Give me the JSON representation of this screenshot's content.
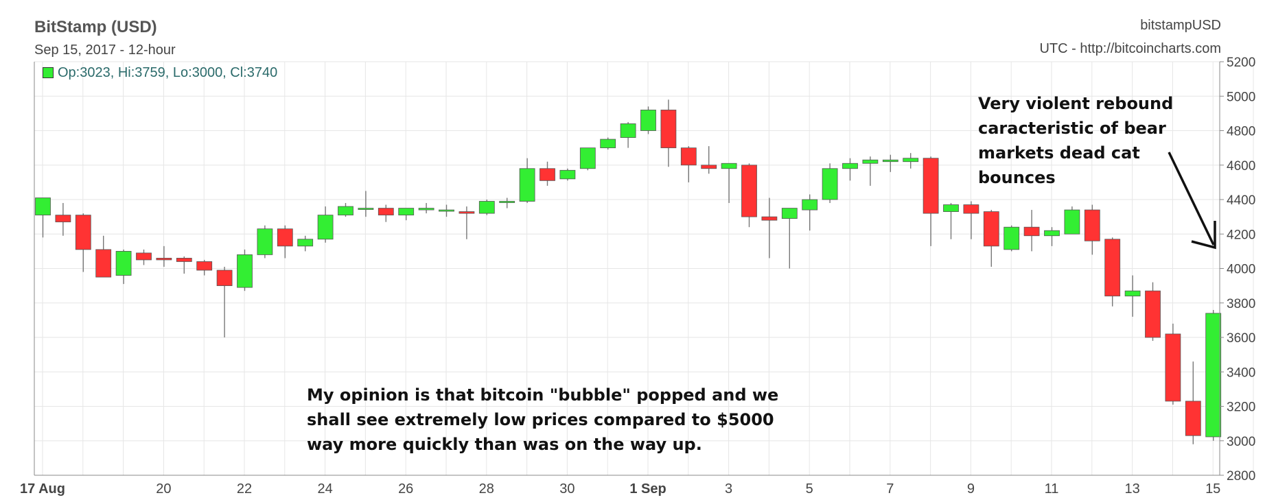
{
  "header": {
    "title": "BitStamp (USD)",
    "subtitle": "Sep 15, 2017 - 12-hour",
    "ohlc": "Op:3023, Hi:3759, Lo:3000, Cl:3740",
    "symbol": "bitstampUSD",
    "source": "UTC - http://bitcoincharts.com"
  },
  "annotations": {
    "right_note": "Very violent rebound caracteristic of bear markets dead cat bounces",
    "bottom_note": "My opinion is that bitcoin \"bubble\" popped and we shall see extremely low prices compared to $5000 way more quickly than was on the way up."
  },
  "colors": {
    "up": "#33ee33",
    "down": "#ff3333",
    "grid": "#e6e6e6",
    "axis": "#888888",
    "text": "#444444"
  },
  "chart_data": {
    "type": "candlestick",
    "title": "BitStamp (USD)",
    "ylim": [
      2800,
      5200
    ],
    "yticks": [
      2800,
      3000,
      3200,
      3400,
      3600,
      3800,
      4000,
      4200,
      4400,
      4600,
      4800,
      5000,
      5200
    ],
    "y_axis_side": "right",
    "grid": true,
    "xlim": [
      0,
      61
    ],
    "x_ticks": [
      {
        "label": "17 Aug",
        "index": 0,
        "bold": true
      },
      {
        "label": "20",
        "index": 6
      },
      {
        "label": "22",
        "index": 10
      },
      {
        "label": "24",
        "index": 14
      },
      {
        "label": "26",
        "index": 18
      },
      {
        "label": "28",
        "index": 22
      },
      {
        "label": "30",
        "index": 26
      },
      {
        "label": "1 Sep",
        "index": 30,
        "bold": true
      },
      {
        "label": "3",
        "index": 34
      },
      {
        "label": "5",
        "index": 38
      },
      {
        "label": "7",
        "index": 42
      },
      {
        "label": "9",
        "index": 46
      },
      {
        "label": "11",
        "index": 50
      },
      {
        "label": "13",
        "index": 54
      },
      {
        "label": "15",
        "index": 58
      }
    ],
    "candles": [
      {
        "o": 4310,
        "h": 4410,
        "l": 4180,
        "c": 4410
      },
      {
        "o": 4310,
        "h": 4380,
        "l": 4190,
        "c": 4270
      },
      {
        "o": 4310,
        "h": 4320,
        "l": 3980,
        "c": 4110
      },
      {
        "o": 4110,
        "h": 4190,
        "l": 3960,
        "c": 3950
      },
      {
        "o": 3960,
        "h": 4110,
        "l": 3910,
        "c": 4100
      },
      {
        "o": 4090,
        "h": 4110,
        "l": 4020,
        "c": 4050
      },
      {
        "o": 4060,
        "h": 4130,
        "l": 4010,
        "c": 4050
      },
      {
        "o": 4060,
        "h": 4070,
        "l": 3970,
        "c": 4040
      },
      {
        "o": 4040,
        "h": 4050,
        "l": 3960,
        "c": 3990
      },
      {
        "o": 3990,
        "h": 4010,
        "l": 3600,
        "c": 3900
      },
      {
        "o": 3890,
        "h": 4110,
        "l": 3870,
        "c": 4080
      },
      {
        "o": 4080,
        "h": 4250,
        "l": 4060,
        "c": 4230
      },
      {
        "o": 4230,
        "h": 4250,
        "l": 4060,
        "c": 4130
      },
      {
        "o": 4130,
        "h": 4190,
        "l": 4100,
        "c": 4170
      },
      {
        "o": 4170,
        "h": 4360,
        "l": 4150,
        "c": 4310
      },
      {
        "o": 4310,
        "h": 4380,
        "l": 4300,
        "c": 4360
      },
      {
        "o": 4350,
        "h": 4450,
        "l": 4300,
        "c": 4350
      },
      {
        "o": 4350,
        "h": 4370,
        "l": 4270,
        "c": 4310
      },
      {
        "o": 4310,
        "h": 4350,
        "l": 4280,
        "c": 4350
      },
      {
        "o": 4340,
        "h": 4380,
        "l": 4320,
        "c": 4350
      },
      {
        "o": 4340,
        "h": 4370,
        "l": 4300,
        "c": 4340
      },
      {
        "o": 4330,
        "h": 4360,
        "l": 4170,
        "c": 4320
      },
      {
        "o": 4320,
        "h": 4400,
        "l": 4310,
        "c": 4390
      },
      {
        "o": 4390,
        "h": 4410,
        "l": 4350,
        "c": 4390
      },
      {
        "o": 4390,
        "h": 4640,
        "l": 4380,
        "c": 4580
      },
      {
        "o": 4580,
        "h": 4620,
        "l": 4480,
        "c": 4510
      },
      {
        "o": 4520,
        "h": 4580,
        "l": 4510,
        "c": 4570
      },
      {
        "o": 4580,
        "h": 4700,
        "l": 4570,
        "c": 4700
      },
      {
        "o": 4700,
        "h": 4760,
        "l": 4690,
        "c": 4750
      },
      {
        "o": 4760,
        "h": 4850,
        "l": 4700,
        "c": 4840
      },
      {
        "o": 4800,
        "h": 4940,
        "l": 4780,
        "c": 4920
      },
      {
        "o": 4920,
        "h": 4980,
        "l": 4590,
        "c": 4700
      },
      {
        "o": 4700,
        "h": 4710,
        "l": 4500,
        "c": 4600
      },
      {
        "o": 4600,
        "h": 4710,
        "l": 4550,
        "c": 4580
      },
      {
        "o": 4580,
        "h": 4610,
        "l": 4380,
        "c": 4610
      },
      {
        "o": 4600,
        "h": 4610,
        "l": 4240,
        "c": 4300
      },
      {
        "o": 4300,
        "h": 4410,
        "l": 4060,
        "c": 4280
      },
      {
        "o": 4290,
        "h": 4350,
        "l": 4000,
        "c": 4350
      },
      {
        "o": 4340,
        "h": 4430,
        "l": 4220,
        "c": 4400
      },
      {
        "o": 4400,
        "h": 4610,
        "l": 4380,
        "c": 4580
      },
      {
        "o": 4580,
        "h": 4640,
        "l": 4510,
        "c": 4610
      },
      {
        "o": 4610,
        "h": 4650,
        "l": 4480,
        "c": 4630
      },
      {
        "o": 4620,
        "h": 4660,
        "l": 4560,
        "c": 4630
      },
      {
        "o": 4620,
        "h": 4670,
        "l": 4580,
        "c": 4640
      },
      {
        "o": 4640,
        "h": 4650,
        "l": 4130,
        "c": 4320
      },
      {
        "o": 4330,
        "h": 4380,
        "l": 4170,
        "c": 4370
      },
      {
        "o": 4370,
        "h": 4390,
        "l": 4170,
        "c": 4320
      },
      {
        "o": 4330,
        "h": 4340,
        "l": 4010,
        "c": 4130
      },
      {
        "o": 4110,
        "h": 4250,
        "l": 4100,
        "c": 4240
      },
      {
        "o": 4240,
        "h": 4340,
        "l": 4100,
        "c": 4190
      },
      {
        "o": 4190,
        "h": 4240,
        "l": 4130,
        "c": 4220
      },
      {
        "o": 4200,
        "h": 4360,
        "l": 4200,
        "c": 4340
      },
      {
        "o": 4340,
        "h": 4370,
        "l": 4080,
        "c": 4160
      },
      {
        "o": 4170,
        "h": 4180,
        "l": 3780,
        "c": 3840
      },
      {
        "o": 3840,
        "h": 3960,
        "l": 3720,
        "c": 3870
      },
      {
        "o": 3870,
        "h": 3920,
        "l": 3580,
        "c": 3600
      },
      {
        "o": 3620,
        "h": 3680,
        "l": 3210,
        "c": 3230
      },
      {
        "o": 3230,
        "h": 3460,
        "l": 2980,
        "c": 3030
      },
      {
        "o": 3023,
        "h": 3759,
        "l": 3000,
        "c": 3740
      }
    ]
  }
}
